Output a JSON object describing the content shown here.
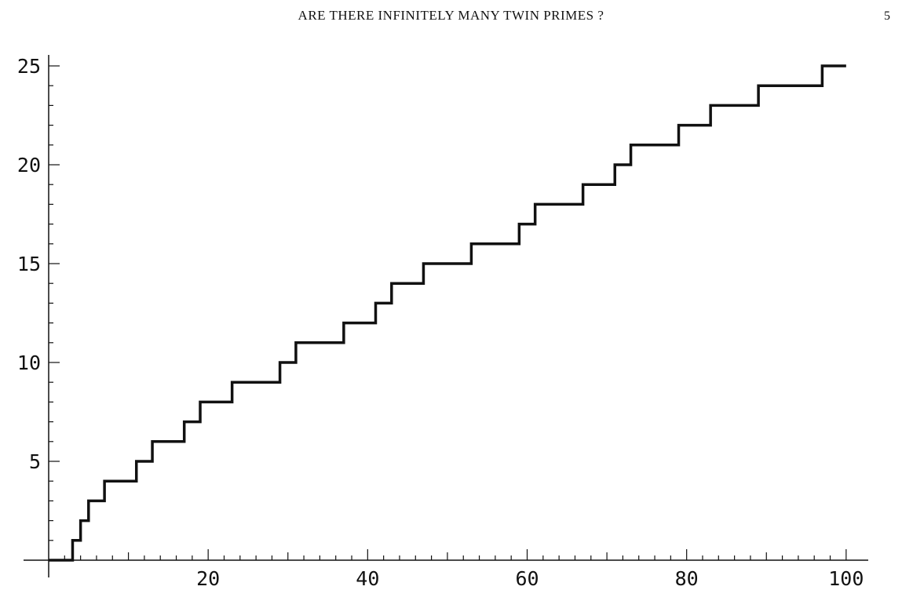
{
  "page": {
    "running_head": "ARE THERE INFINITELY MANY TWIN PRIMES ?",
    "page_number": "5"
  },
  "chart_data": {
    "type": "line",
    "step": true,
    "title": "",
    "xlabel": "",
    "ylabel": "",
    "xlim": [
      0,
      101
    ],
    "ylim": [
      0,
      25
    ],
    "x_ticks": [
      20,
      40,
      60,
      80,
      100
    ],
    "y_ticks": [
      5,
      10,
      15,
      20,
      25
    ],
    "grid": false,
    "line_color": "#111111",
    "steps": {
      "x": [
        0,
        3,
        4,
        5,
        7,
        11,
        13,
        17,
        19,
        23,
        29,
        31,
        37,
        41,
        43,
        47,
        53,
        59,
        61,
        67,
        71,
        73,
        79,
        83,
        89,
        97,
        100
      ],
      "y": [
        0,
        1,
        2,
        3,
        4,
        5,
        6,
        7,
        8,
        9,
        10,
        11,
        12,
        13,
        14,
        15,
        16,
        17,
        18,
        19,
        20,
        21,
        22,
        23,
        24,
        25,
        25
      ]
    }
  }
}
